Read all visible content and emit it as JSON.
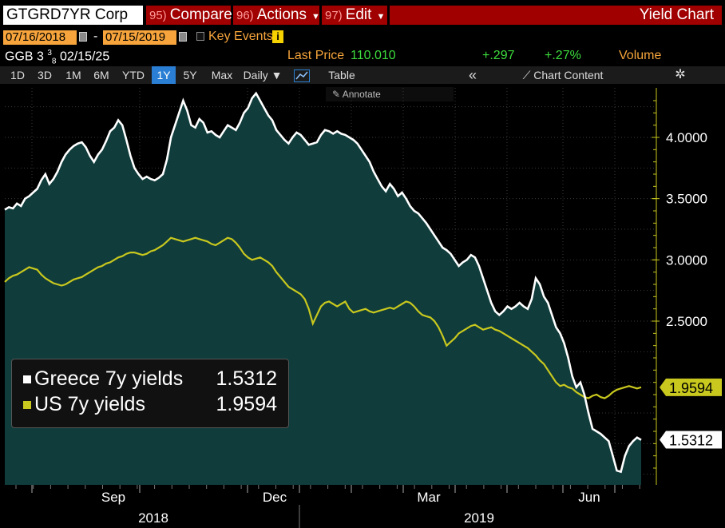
{
  "header": {
    "ticker": "GTGRD7YR Corp",
    "compare": {
      "num": "95)",
      "label": "Compare"
    },
    "actions": {
      "num": "96)",
      "label": "Actions"
    },
    "edit": {
      "num": "97)",
      "label": "Edit"
    },
    "title": "Yield Chart"
  },
  "dates": {
    "start": "07/16/2018",
    "end": "07/15/2019",
    "key_events": "Key Events"
  },
  "security": {
    "name": "GGB 3",
    "coupon_frac_num": "3",
    "coupon_frac_den": "8",
    "maturity": "02/15/25",
    "last_price_label": "Last Price",
    "last_price": "110.010",
    "change": "+.297",
    "change_pct": "+.27%",
    "volume_label": "Volume"
  },
  "toolbar": {
    "ranges": [
      "1D",
      "3D",
      "1M",
      "6M",
      "YTD",
      "1Y",
      "5Y",
      "Max"
    ],
    "active_range": "1Y",
    "frequency": "Daily",
    "table": "Table",
    "chart_content": "Chart Content",
    "annotate": "Annotate"
  },
  "colors": {
    "greece": "#ffffff",
    "us": "#c8c81e",
    "fill": "#103c3c",
    "header_red": "#a00000",
    "orange": "#f6a43b"
  },
  "chart_data": {
    "type": "line",
    "ylim": [
      1.1,
      4.4
    ],
    "y_ticks": [
      "2.5000",
      "3.0000",
      "3.5000",
      "4.0000"
    ],
    "x_ticks": [
      "Sep",
      "Dec",
      "Mar",
      "Jun"
    ],
    "years": [
      "2018",
      "2019"
    ],
    "series": [
      {
        "name": "Greece 7y yields",
        "last": "1.5312",
        "values": [
          3.41,
          3.43,
          3.42,
          3.46,
          3.44,
          3.5,
          3.52,
          3.55,
          3.58,
          3.65,
          3.7,
          3.62,
          3.66,
          3.72,
          3.8,
          3.86,
          3.9,
          3.93,
          3.95,
          3.96,
          3.92,
          3.85,
          3.8,
          3.86,
          3.9,
          3.97,
          4.05,
          4.08,
          4.14,
          4.1,
          3.98,
          3.85,
          3.75,
          3.7,
          3.66,
          3.68,
          3.66,
          3.65,
          3.67,
          3.7,
          3.82,
          4.0,
          4.1,
          4.2,
          4.3,
          4.22,
          4.1,
          4.08,
          4.15,
          4.12,
          4.04,
          4.05,
          4.02,
          4.0,
          4.05,
          4.1,
          4.08,
          4.06,
          4.12,
          4.2,
          4.24,
          4.32,
          4.36,
          4.3,
          4.24,
          4.18,
          4.14,
          4.06,
          4.02,
          3.98,
          3.95,
          4.0,
          4.04,
          4.02,
          3.98,
          3.94,
          3.95,
          3.96,
          4.02,
          4.06,
          4.05,
          4.03,
          4.05,
          4.03,
          4.02,
          4.0,
          3.98,
          3.95,
          3.9,
          3.85,
          3.8,
          3.72,
          3.66,
          3.6,
          3.56,
          3.62,
          3.58,
          3.52,
          3.55,
          3.5,
          3.44,
          3.4,
          3.38,
          3.34,
          3.3,
          3.25,
          3.2,
          3.15,
          3.1,
          3.08,
          3.05,
          3.0,
          2.95,
          2.98,
          3.0,
          3.04,
          3.02,
          2.95,
          2.85,
          2.75,
          2.65,
          2.58,
          2.55,
          2.58,
          2.62,
          2.6,
          2.62,
          2.65,
          2.62,
          2.6,
          2.68,
          2.85,
          2.8,
          2.7,
          2.65,
          2.55,
          2.45,
          2.4,
          2.32,
          2.2,
          2.05,
          1.96,
          2.0,
          1.9,
          1.75,
          1.62,
          1.6,
          1.58,
          1.55,
          1.52,
          1.4,
          1.28,
          1.27,
          1.4,
          1.48,
          1.52,
          1.55,
          1.53
        ]
      },
      {
        "name": "US 7y yields",
        "last": "1.9594",
        "values": [
          2.82,
          2.85,
          2.87,
          2.88,
          2.9,
          2.92,
          2.94,
          2.93,
          2.92,
          2.88,
          2.85,
          2.83,
          2.81,
          2.8,
          2.79,
          2.8,
          2.82,
          2.84,
          2.85,
          2.86,
          2.88,
          2.9,
          2.92,
          2.94,
          2.95,
          2.97,
          2.98,
          3.0,
          3.02,
          3.03,
          3.05,
          3.06,
          3.06,
          3.05,
          3.04,
          3.05,
          3.07,
          3.08,
          3.1,
          3.12,
          3.15,
          3.18,
          3.17,
          3.16,
          3.15,
          3.16,
          3.17,
          3.18,
          3.17,
          3.16,
          3.15,
          3.13,
          3.12,
          3.14,
          3.16,
          3.18,
          3.17,
          3.14,
          3.1,
          3.05,
          3.02,
          3.0,
          3.01,
          3.02,
          3.0,
          2.98,
          2.95,
          2.9,
          2.86,
          2.82,
          2.78,
          2.76,
          2.74,
          2.72,
          2.68,
          2.6,
          2.48,
          2.55,
          2.62,
          2.65,
          2.66,
          2.64,
          2.62,
          2.64,
          2.66,
          2.6,
          2.57,
          2.58,
          2.59,
          2.6,
          2.58,
          2.57,
          2.58,
          2.59,
          2.6,
          2.61,
          2.6,
          2.62,
          2.64,
          2.66,
          2.65,
          2.62,
          2.58,
          2.55,
          2.54,
          2.53,
          2.5,
          2.45,
          2.38,
          2.3,
          2.33,
          2.36,
          2.4,
          2.42,
          2.44,
          2.46,
          2.47,
          2.45,
          2.43,
          2.44,
          2.45,
          2.43,
          2.42,
          2.4,
          2.38,
          2.36,
          2.34,
          2.32,
          2.3,
          2.28,
          2.25,
          2.22,
          2.18,
          2.15,
          2.1,
          2.05,
          2.0,
          1.97,
          1.98,
          1.96,
          1.95,
          1.92,
          1.9,
          1.88,
          1.87,
          1.89,
          1.9,
          1.88,
          1.87,
          1.89,
          1.92,
          1.94,
          1.95,
          1.96,
          1.97,
          1.96,
          1.95,
          1.96
        ]
      }
    ]
  }
}
